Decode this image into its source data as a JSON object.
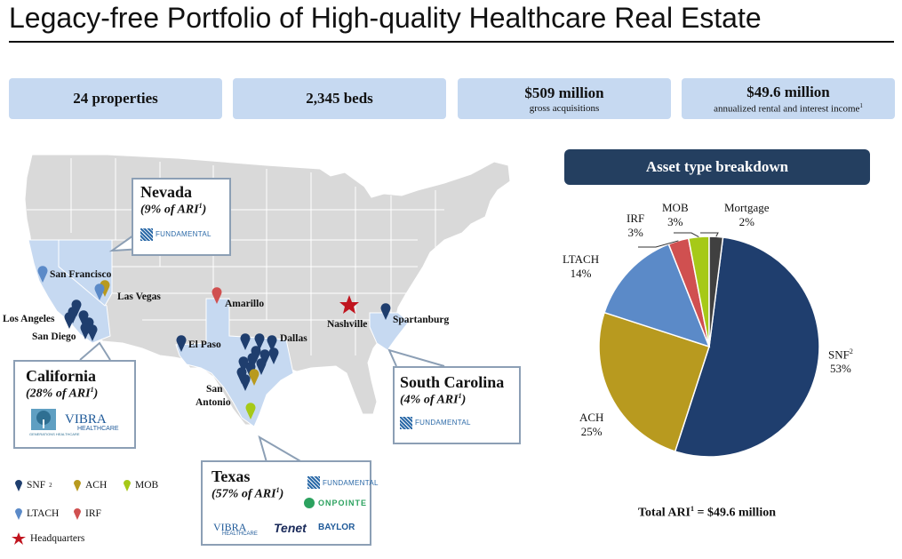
{
  "title": "Legacy-free Portfolio of High-quality Healthcare Real Estate",
  "stats": [
    {
      "big": "24 properties",
      "small": ""
    },
    {
      "big": "2,345 beds",
      "small": ""
    },
    {
      "big": "$509 million",
      "small": "gross acquisitions"
    },
    {
      "big": "$49.6 million",
      "small": "annualized rental and interest income",
      "small_sup": "1"
    }
  ],
  "callouts": {
    "nevada": {
      "name": "Nevada",
      "sub": "(9% of ARI",
      "sup": "1",
      "tail": ")",
      "logos": [
        "FUNDAMENTAL"
      ]
    },
    "california": {
      "name": "California",
      "sub": "(28% of ARI",
      "sup": "1",
      "tail": ")",
      "logos": [
        "GENERATIONS HEALTHCARE",
        "VIBRA",
        "HEALTHCARE"
      ]
    },
    "south_carolina": {
      "name": "South Carolina",
      "sub": "(4% of ARI",
      "sup": "1",
      "tail": ")",
      "logos": [
        "FUNDAMENTAL"
      ]
    },
    "texas": {
      "name": "Texas",
      "sub": "(57% of ARI",
      "sup": "1",
      "tail": ")",
      "logos": [
        "FUNDAMENTAL",
        "ONPOINTE",
        "VIBRA",
        "HEALTHCARE",
        "Tenet",
        "BAYLOR"
      ]
    }
  },
  "cities": {
    "san_francisco": "San Francisco",
    "las_vegas": "Las Vegas",
    "los_angeles": "Los Angeles",
    "san_diego": "San Diego",
    "amarillo": "Amarillo",
    "el_paso": "El Paso",
    "dallas": "Dallas",
    "san_antonio_1": "San",
    "san_antonio_2": "Antonio",
    "nashville": "Nashville",
    "spartanburg": "Spartanburg"
  },
  "legend": {
    "snf": "SNF",
    "snf_sup": "2",
    "ach": "ACH",
    "mob": "MOB",
    "ltach": "LTACH",
    "irf": "IRF",
    "hq": "Headquarters"
  },
  "colors": {
    "snf": "#1f3e6e",
    "ach": "#b89a1f",
    "mob": "#a6c918",
    "ltach": "#5b8ac8",
    "irf": "#d05050",
    "mortgage": "#404040",
    "hq": "#c0141e",
    "highlight_state": "#c6d9f1",
    "header": "#243f60"
  },
  "breakdown": {
    "header": "Asset type breakdown",
    "total_prefix": "Total ARI",
    "total_sup": "1",
    "total_suffix": " = $49.6 million"
  },
  "chart_data": {
    "type": "pie",
    "title": "Asset type breakdown",
    "slices": [
      {
        "label": "SNF",
        "sup": "2",
        "value": 53,
        "pct": "53%"
      },
      {
        "label": "ACH",
        "value": 25,
        "pct": "25%"
      },
      {
        "label": "LTACH",
        "value": 14,
        "pct": "14%"
      },
      {
        "label": "IRF",
        "value": 3,
        "pct": "3%"
      },
      {
        "label": "MOB",
        "value": 3,
        "pct": "3%"
      },
      {
        "label": "Mortgage",
        "value": 2,
        "pct": "2%"
      }
    ]
  }
}
